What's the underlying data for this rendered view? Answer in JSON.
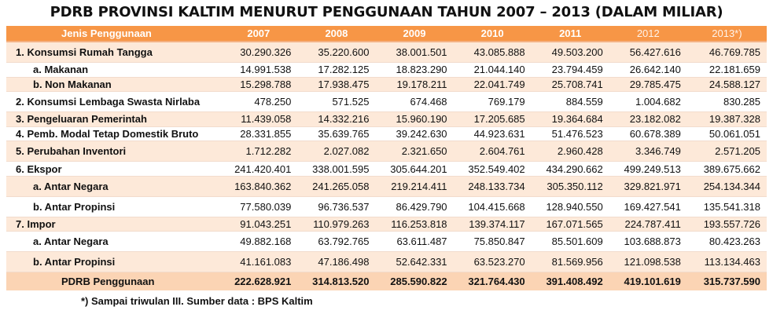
{
  "title": "PDRB PROVINSI KALTIM MENURUT PENGGUNAAN TAHUN 2007 – 2013 (DALAM MILIAR)",
  "table": {
    "header": [
      "Jenis Penggunaan",
      "2007",
      "2008",
      "2009",
      "2010",
      "2011",
      "2012",
      "2013*)"
    ],
    "rows": [
      {
        "label": "1. Konsumsi Rumah Tangga",
        "values": [
          "30.290.326",
          "35.220.600",
          "38.001.501",
          "43.085.888",
          "49.503.200",
          "56.427.616",
          "46.769.785"
        ]
      },
      {
        "label": "a. Makanan",
        "values": [
          "14.991.538",
          "17.282.125",
          "18.823.290",
          "21.044.140",
          "23.794.459",
          "26.642.140",
          "22.181.659"
        ]
      },
      {
        "label": "b. Non Makanan",
        "values": [
          "15.298.788",
          "17.938.475",
          "19.178.211",
          "22.041.749",
          "25.708.741",
          "29.785.475",
          "24.588.127"
        ]
      },
      {
        "label": "2. Konsumsi Lembaga Swasta Nirlaba",
        "values": [
          "478.250",
          "571.525",
          "674.468",
          "769.179",
          "884.559",
          "1.004.682",
          "830.285"
        ]
      },
      {
        "label": "3. Pengeluaran Pemerintah",
        "values": [
          "11.439.058",
          "14.332.216",
          "15.960.190",
          "17.205.685",
          "19.364.684",
          "23.182.082",
          "19.387.328"
        ]
      },
      {
        "label": "4. Pemb. Modal Tetap Domestik Bruto",
        "values": [
          "28.331.855",
          "35.639.765",
          "39.242.630",
          "44.923.631",
          "51.476.523",
          "60.678.389",
          "50.061.051"
        ]
      },
      {
        "label": "5. Perubahan Inventori",
        "values": [
          "1.712.282",
          "2.027.082",
          "2.321.650",
          "2.604.761",
          "2.960.428",
          "3.346.749",
          "2.571.205"
        ]
      },
      {
        "label": "6. Ekspor",
        "values": [
          "241.420.401",
          "338.001.595",
          "305.644.201",
          "352.549.402",
          "434.290.662",
          "499.249.513",
          "389.675.662"
        ]
      },
      {
        "label": "a. Antar Negara",
        "values": [
          "163.840.362",
          "241.265.058",
          "219.214.411",
          "248.133.734",
          "305.350.112",
          "329.821.971",
          "254.134.344"
        ]
      },
      {
        "label": "b. Antar Propinsi",
        "values": [
          "77.580.039",
          "96.736.537",
          "86.429.790",
          "104.415.668",
          "128.940.550",
          "169.427.541",
          "135.541.318"
        ]
      },
      {
        "label": "7. Impor",
        "values": [
          "91.043.251",
          "110.979.263",
          "116.253.818",
          "139.374.117",
          "167.071.565",
          "224.787.411",
          "193.557.726"
        ]
      },
      {
        "label": "a. Antar Negara",
        "values": [
          "49.882.168",
          "63.792.765",
          "63.611.487",
          "75.850.847",
          "85.501.609",
          "103.688.873",
          "80.423.263"
        ]
      },
      {
        "label": "b. Antar Propinsi",
        "values": [
          "41.161.083",
          "47.186.498",
          "52.642.331",
          "63.523.270",
          "81.569.956",
          "121.098.538",
          "113.134.463"
        ]
      }
    ],
    "total": {
      "label": "PDRB Penggunaan",
      "values": [
        "222.628.921",
        "314.813.520",
        "285.590.822",
        "321.764.430",
        "391.408.492",
        "419.101.619",
        "315.737.590"
      ]
    }
  },
  "footnote": "*) Sampai triwulan III. Sumber data : BPS Kaltim"
}
